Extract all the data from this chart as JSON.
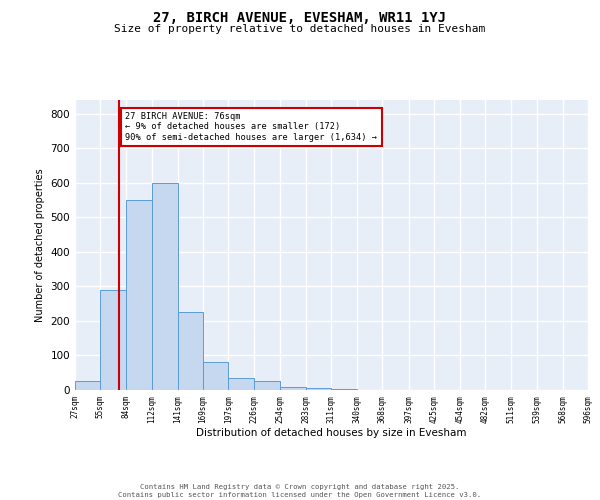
{
  "title1": "27, BIRCH AVENUE, EVESHAM, WR11 1YJ",
  "title2": "Size of property relative to detached houses in Evesham",
  "xlabel": "Distribution of detached houses by size in Evesham",
  "ylabel": "Number of detached properties",
  "bar_edges": [
    27,
    55,
    84,
    112,
    141,
    169,
    197,
    226,
    254,
    283,
    311,
    340,
    368,
    397,
    425,
    454,
    482,
    511,
    539,
    568,
    596
  ],
  "bar_heights": [
    25,
    290,
    550,
    600,
    225,
    82,
    35,
    25,
    10,
    5,
    3,
    0,
    0,
    0,
    0,
    0,
    0,
    0,
    0,
    0
  ],
  "bar_color": "#c5d8f0",
  "bar_edgecolor": "#5b9bd5",
  "vline_x": 76,
  "vline_color": "#cc0000",
  "annotation_text": "27 BIRCH AVENUE: 76sqm\n← 9% of detached houses are smaller (172)\n90% of semi-detached houses are larger (1,634) →",
  "annotation_box_color": "#ffffff",
  "annotation_box_edgecolor": "#cc0000",
  "ylim": [
    0,
    840
  ],
  "yticks": [
    0,
    100,
    200,
    300,
    400,
    500,
    600,
    700,
    800
  ],
  "background_color": "#e8eef8",
  "grid_color": "#ffffff",
  "footer_text": "Contains HM Land Registry data © Crown copyright and database right 2025.\nContains public sector information licensed under the Open Government Licence v3.0.",
  "tick_labels": [
    "27sqm",
    "55sqm",
    "84sqm",
    "112sqm",
    "141sqm",
    "169sqm",
    "197sqm",
    "226sqm",
    "254sqm",
    "283sqm",
    "311sqm",
    "340sqm",
    "368sqm",
    "397sqm",
    "425sqm",
    "454sqm",
    "482sqm",
    "511sqm",
    "539sqm",
    "568sqm",
    "596sqm"
  ]
}
